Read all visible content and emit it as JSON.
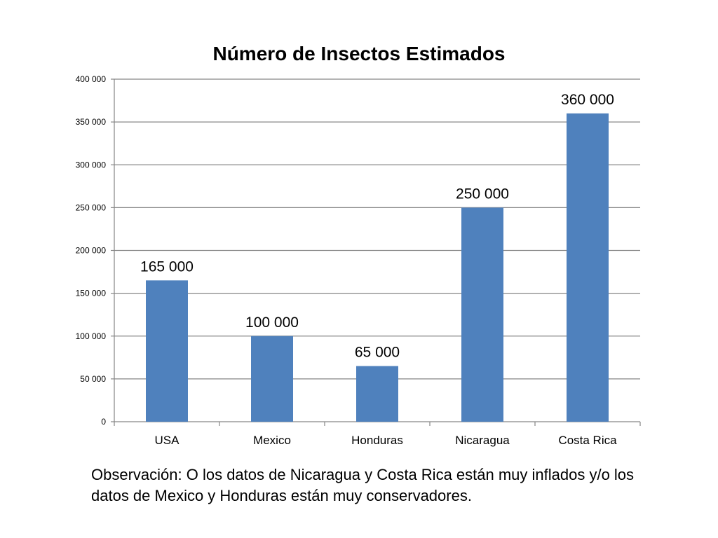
{
  "chart_data": {
    "type": "bar",
    "title": "Número de Insectos Estimados",
    "categories": [
      "USA",
      "Mexico",
      "Honduras",
      "Nicaragua",
      "Costa Rica"
    ],
    "values": [
      165000,
      100000,
      65000,
      250000,
      360000
    ],
    "data_labels": [
      "165 000",
      "100 000",
      "65 000",
      "250 000",
      "360 000"
    ],
    "y_ticks": [
      0,
      50000,
      100000,
      150000,
      200000,
      250000,
      300000,
      350000,
      400000
    ],
    "y_tick_labels": [
      "0",
      "50 000",
      "100 000",
      "150 000",
      "200 000",
      "250 000",
      "300 000",
      "350 000",
      "400 000"
    ],
    "ylim": [
      0,
      400000
    ],
    "xlabel": "",
    "ylabel": "",
    "grid": true,
    "legend": "none",
    "bar_color": "#4F81BD"
  },
  "observation": "Observación: O los datos de Nicaragua y Costa Rica están muy inflados y/o los datos de Mexico y Honduras están muy conservadores."
}
